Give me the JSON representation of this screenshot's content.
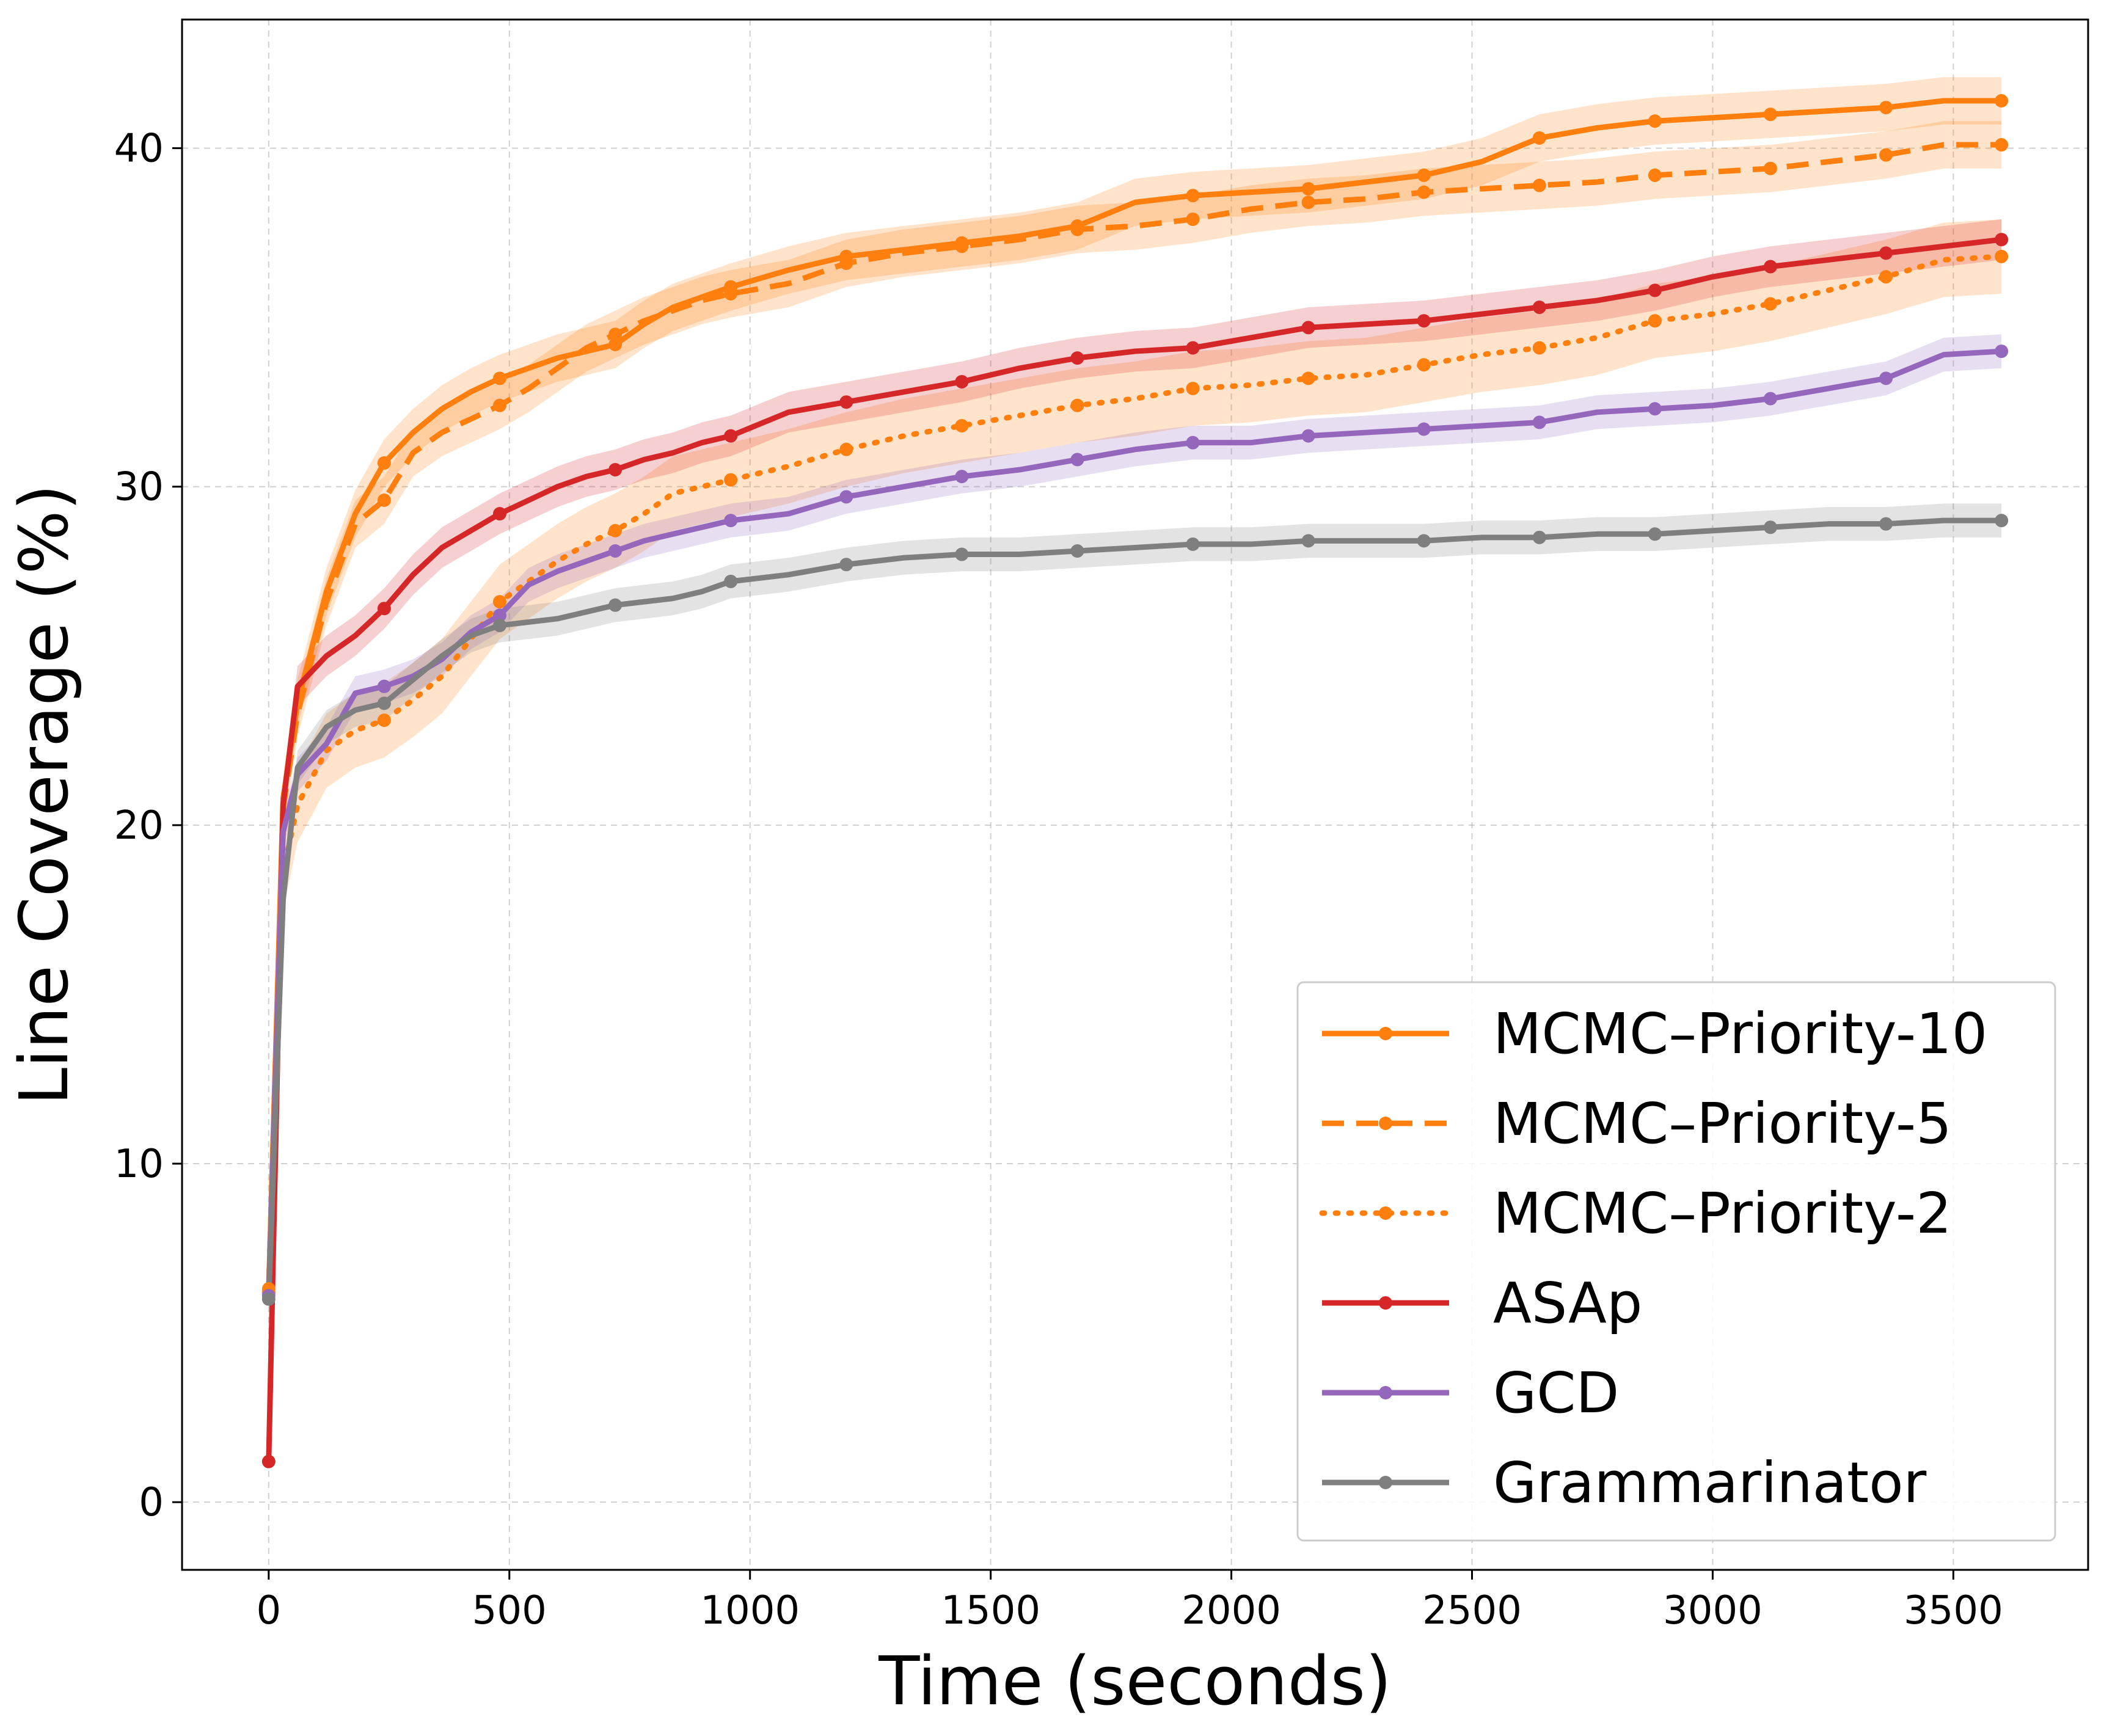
{
  "chart_data": {
    "type": "line",
    "title": "",
    "xlabel": "Time (seconds)",
    "ylabel": "Line Coverage (%)",
    "xlim": [
      -180,
      3780
    ],
    "ylim": [
      -2,
      43.8
    ],
    "xticks": [
      0,
      500,
      1000,
      1500,
      2000,
      2500,
      3000,
      3500
    ],
    "yticks": [
      0,
      10,
      20,
      30,
      40
    ],
    "grid": true,
    "legend_position": "lower-right",
    "series": [
      {
        "name": "MCMC–Priority-10",
        "color": "#ff7f0e",
        "style": "solid",
        "band": 0.7,
        "x": [
          0,
          30,
          60,
          120,
          180,
          240,
          300,
          360,
          420,
          480,
          540,
          600,
          660,
          720,
          780,
          840,
          900,
          960,
          1080,
          1200,
          1320,
          1440,
          1560,
          1680,
          1800,
          1920,
          2040,
          2160,
          2280,
          2400,
          2520,
          2640,
          2760,
          2880,
          3000,
          3120,
          3240,
          3360,
          3480,
          3600
        ],
        "y": [
          6.2,
          20.8,
          23.6,
          26.9,
          29.2,
          30.7,
          31.6,
          32.3,
          32.8,
          33.2,
          33.5,
          33.8,
          34.0,
          34.2,
          34.8,
          35.3,
          35.6,
          35.9,
          36.4,
          36.8,
          37.0,
          37.2,
          37.4,
          37.7,
          38.4,
          38.6,
          38.7,
          38.8,
          39.0,
          39.2,
          39.6,
          40.3,
          40.6,
          40.8,
          40.9,
          41.0,
          41.1,
          41.2,
          41.4,
          41.4
        ]
      },
      {
        "name": "MCMC–Priority-5",
        "color": "#ff7f0e",
        "style": "dashed",
        "band": 0.7,
        "x": [
          0,
          30,
          60,
          120,
          180,
          240,
          300,
          360,
          420,
          480,
          540,
          600,
          660,
          720,
          780,
          840,
          900,
          960,
          1080,
          1200,
          1320,
          1440,
          1560,
          1680,
          1800,
          1920,
          2040,
          2160,
          2280,
          2400,
          2520,
          2640,
          2760,
          2880,
          3000,
          3120,
          3240,
          3360,
          3480,
          3600
        ],
        "y": [
          6.3,
          20.5,
          23.3,
          26.6,
          28.9,
          29.6,
          31.0,
          31.6,
          32.0,
          32.4,
          32.9,
          33.5,
          34.1,
          34.5,
          34.9,
          35.2,
          35.5,
          35.7,
          36.0,
          36.6,
          36.9,
          37.1,
          37.3,
          37.6,
          37.7,
          37.9,
          38.2,
          38.4,
          38.5,
          38.7,
          38.8,
          38.9,
          39.0,
          39.2,
          39.3,
          39.4,
          39.6,
          39.8,
          40.1,
          40.1
        ]
      },
      {
        "name": "MCMC–Priority-2",
        "color": "#ff7f0e",
        "style": "dotted",
        "band": 1.1,
        "x": [
          0,
          30,
          60,
          120,
          180,
          240,
          300,
          360,
          420,
          480,
          540,
          600,
          660,
          720,
          780,
          840,
          900,
          960,
          1080,
          1200,
          1320,
          1440,
          1560,
          1680,
          1800,
          1920,
          2040,
          2160,
          2280,
          2400,
          2520,
          2640,
          2760,
          2880,
          3000,
          3120,
          3240,
          3360,
          3480,
          3600
        ],
        "y": [
          6.2,
          18.6,
          20.6,
          22.2,
          22.8,
          23.1,
          23.7,
          24.4,
          25.5,
          26.6,
          27.2,
          27.8,
          28.3,
          28.7,
          29.2,
          29.8,
          30.0,
          30.2,
          30.6,
          31.1,
          31.5,
          31.8,
          32.1,
          32.4,
          32.6,
          32.9,
          33.0,
          33.2,
          33.3,
          33.6,
          33.9,
          34.1,
          34.4,
          34.9,
          35.1,
          35.4,
          35.8,
          36.2,
          36.7,
          36.8
        ]
      },
      {
        "name": "ASAp",
        "color": "#d62728",
        "style": "solid",
        "band": 0.6,
        "x": [
          0,
          30,
          60,
          120,
          180,
          240,
          300,
          360,
          420,
          480,
          540,
          600,
          660,
          720,
          780,
          840,
          900,
          960,
          1080,
          1200,
          1320,
          1440,
          1560,
          1680,
          1800,
          1920,
          2040,
          2160,
          2280,
          2400,
          2520,
          2640,
          2760,
          2880,
          3000,
          3120,
          3240,
          3360,
          3480,
          3600
        ],
        "y": [
          1.2,
          20.6,
          24.1,
          25.0,
          25.6,
          26.4,
          27.4,
          28.2,
          28.7,
          29.2,
          29.6,
          30.0,
          30.3,
          30.5,
          30.8,
          31.0,
          31.3,
          31.5,
          32.2,
          32.5,
          32.8,
          33.1,
          33.5,
          33.8,
          34.0,
          34.1,
          34.4,
          34.7,
          34.8,
          34.9,
          35.1,
          35.3,
          35.5,
          35.8,
          36.2,
          36.5,
          36.7,
          36.9,
          37.1,
          37.3
        ]
      },
      {
        "name": "GCD",
        "color": "#9467bd",
        "style": "solid",
        "band": 0.5,
        "x": [
          0,
          30,
          60,
          120,
          180,
          240,
          300,
          360,
          420,
          480,
          540,
          600,
          660,
          720,
          780,
          840,
          900,
          960,
          1080,
          1200,
          1320,
          1440,
          1560,
          1680,
          1800,
          1920,
          2040,
          2160,
          2280,
          2400,
          2520,
          2640,
          2760,
          2880,
          3000,
          3120,
          3240,
          3360,
          3480,
          3600
        ],
        "y": [
          6.1,
          19.8,
          21.5,
          22.4,
          23.9,
          24.1,
          24.4,
          24.9,
          25.7,
          26.2,
          27.1,
          27.5,
          27.8,
          28.1,
          28.4,
          28.6,
          28.8,
          29.0,
          29.2,
          29.7,
          30.0,
          30.3,
          30.5,
          30.8,
          31.1,
          31.3,
          31.3,
          31.5,
          31.6,
          31.7,
          31.8,
          31.9,
          32.2,
          32.3,
          32.4,
          32.6,
          32.9,
          33.2,
          33.9,
          34.0
        ]
      },
      {
        "name": "Grammarinator",
        "color": "#7f7f7f",
        "style": "solid",
        "band": 0.5,
        "x": [
          0,
          30,
          60,
          120,
          180,
          240,
          300,
          360,
          420,
          480,
          540,
          600,
          660,
          720,
          780,
          840,
          900,
          960,
          1080,
          1200,
          1320,
          1440,
          1560,
          1680,
          1800,
          1920,
          2040,
          2160,
          2280,
          2400,
          2520,
          2640,
          2760,
          2880,
          3000,
          3120,
          3240,
          3360,
          3480,
          3600
        ],
        "y": [
          6.0,
          17.8,
          21.7,
          22.9,
          23.4,
          23.6,
          24.3,
          25.0,
          25.6,
          25.9,
          26.0,
          26.1,
          26.3,
          26.5,
          26.6,
          26.7,
          26.9,
          27.2,
          27.4,
          27.7,
          27.9,
          28.0,
          28.0,
          28.1,
          28.2,
          28.3,
          28.3,
          28.4,
          28.4,
          28.4,
          28.5,
          28.5,
          28.6,
          28.6,
          28.7,
          28.8,
          28.9,
          28.9,
          29.0,
          29.0
        ]
      }
    ]
  }
}
